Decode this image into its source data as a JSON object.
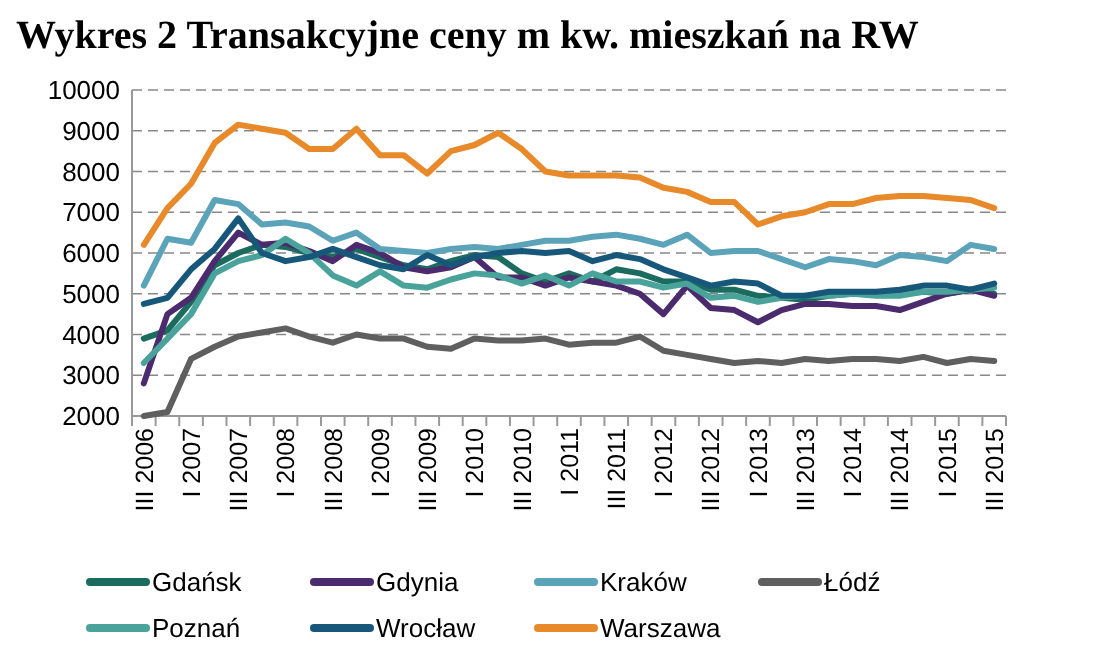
{
  "chart_data": {
    "type": "line",
    "title": "Wykres 2 Transakcyjne ceny m kw. mieszkań na RW",
    "categories": [
      "III 2006",
      null,
      "I 2007",
      null,
      "III 2007",
      null,
      "I 2008",
      null,
      "III 2008",
      null,
      "I 2009",
      null,
      "III 2009",
      null,
      "I 2010",
      null,
      "III 2010",
      null,
      "I 2011",
      null,
      "III 2011",
      null,
      "I 2012",
      null,
      "III 2012",
      null,
      "I 2013",
      null,
      "III 2013",
      null,
      "I 2014",
      null,
      "III 2014",
      null,
      "I 2015",
      null,
      "III 2015"
    ],
    "ylim": [
      2000,
      10000
    ],
    "yticks": [
      2000,
      3000,
      4000,
      5000,
      6000,
      7000,
      8000,
      9000,
      10000
    ],
    "grid": "y",
    "legend": "bottom",
    "marker": "none",
    "line_style": "solid",
    "series": [
      {
        "name": "Gdańsk",
        "color": "#1b6b5f",
        "values": [
          3900,
          4100,
          4800,
          5700,
          6000,
          6200,
          6150,
          6000,
          5900,
          6100,
          5900,
          5700,
          5600,
          5800,
          5950,
          5900,
          5500,
          5300,
          5500,
          5300,
          5600,
          5500,
          5300,
          5300,
          5100,
          5100,
          4950,
          4900,
          4850,
          4950,
          5000,
          5000,
          5000,
          5050,
          5000,
          5100,
          5000
        ]
      },
      {
        "name": "Gdynia",
        "color": "#4b2a6e",
        "values": [
          2800,
          4500,
          4900,
          5800,
          6500,
          6200,
          6250,
          6050,
          5800,
          6200,
          6000,
          5650,
          5550,
          5650,
          5900,
          5400,
          5400,
          5200,
          5400,
          5300,
          5200,
          5000,
          4500,
          5200,
          4650,
          4600,
          4300,
          4600,
          4750,
          4750,
          4700,
          4700,
          4600,
          4800,
          5000,
          5100,
          4950
        ]
      },
      {
        "name": "Kraków",
        "color": "#5ba3b8",
        "values": [
          5200,
          6350,
          6250,
          7300,
          7200,
          6700,
          6750,
          6650,
          6300,
          6500,
          6100,
          6050,
          6000,
          6100,
          6150,
          6100,
          6200,
          6300,
          6300,
          6400,
          6450,
          6350,
          6200,
          6450,
          6000,
          6050,
          6050,
          5850,
          5650,
          5850,
          5800,
          5700,
          5950,
          5900,
          5800,
          6200,
          6100
        ]
      },
      {
        "name": "Łódź",
        "color": "#5f5f5f",
        "values": [
          2000,
          2100,
          3400,
          3700,
          3950,
          4050,
          4150,
          3950,
          3800,
          4000,
          3900,
          3900,
          3700,
          3650,
          3900,
          3850,
          3850,
          3900,
          3750,
          3800,
          3800,
          3950,
          3600,
          3500,
          3400,
          3300,
          3350,
          3300,
          3400,
          3350,
          3400,
          3400,
          3350,
          3450,
          3300,
          3400,
          3350
        ]
      },
      {
        "name": "Poznań",
        "color": "#4aa39a",
        "values": [
          3300,
          3900,
          4500,
          5500,
          5800,
          5950,
          6350,
          6000,
          5450,
          5200,
          5550,
          5200,
          5150,
          5350,
          5500,
          5450,
          5250,
          5450,
          5200,
          5500,
          5300,
          5300,
          5150,
          5250,
          4900,
          4950,
          4800,
          4900,
          4950,
          4950,
          5000,
          4950,
          4950,
          5050,
          5050,
          5100,
          5150
        ]
      },
      {
        "name": "Wrocław",
        "color": "#17587a",
        "values": [
          4750,
          4900,
          5600,
          6100,
          6850,
          6000,
          5800,
          5900,
          6100,
          5900,
          5700,
          5600,
          5950,
          5700,
          5900,
          6000,
          6050,
          6000,
          6050,
          5800,
          5950,
          5850,
          5600,
          5400,
          5200,
          5300,
          5250,
          4950,
          4950,
          5050,
          5050,
          5050,
          5100,
          5200,
          5200,
          5100,
          5250
        ]
      },
      {
        "name": "Warszawa",
        "color": "#e8892a",
        "values": [
          6200,
          7100,
          7700,
          8700,
          9150,
          9050,
          8950,
          8550,
          8550,
          9050,
          8400,
          8400,
          7950,
          8500,
          8650,
          8950,
          8550,
          8000,
          7900,
          7900,
          7900,
          7850,
          7600,
          7500,
          7250,
          7250,
          6700,
          6900,
          7000,
          7200,
          7200,
          7350,
          7400,
          7400,
          7350,
          7300,
          7100
        ]
      }
    ]
  }
}
